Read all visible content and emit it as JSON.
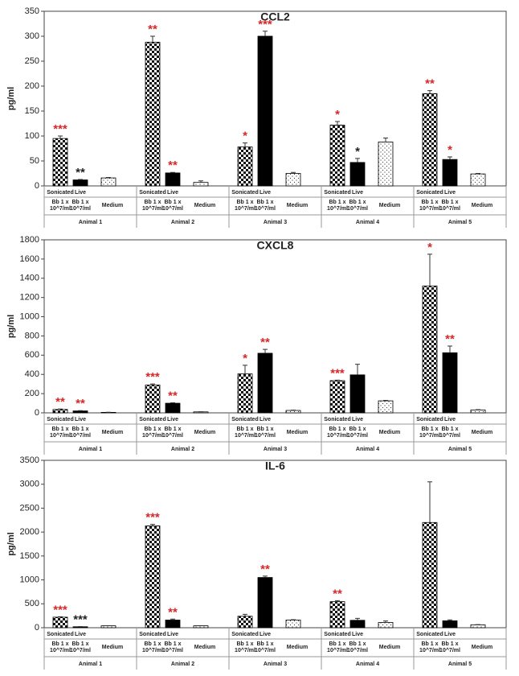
{
  "chart_data": [
    {
      "type": "bar",
      "title": "CCL2",
      "y_label": "pg/ml",
      "categories": [
        "Animal 1",
        "Animal 2",
        "Animal 3",
        "Animal 4",
        "Animal 5"
      ],
      "ylim": [
        0,
        350
      ],
      "yticks": [
        0,
        50,
        100,
        150,
        200,
        250,
        300,
        350
      ],
      "series": [
        {
          "name": "Sonicated",
          "detail": [
            "Bb 1 x",
            "10^7/ml"
          ],
          "pattern": "checker",
          "color": "#000000",
          "values": [
            95,
            288,
            78,
            122,
            185
          ],
          "errors": [
            5,
            12,
            8,
            7,
            6
          ],
          "stars": [
            "***",
            "**",
            "*",
            "*",
            "**"
          ],
          "star_colors": [
            "#d62728",
            "#d62728",
            "#d62728",
            "#d62728",
            "#d62728"
          ]
        },
        {
          "name": "Live",
          "detail": [
            "Bb 1 x",
            "10^7/ml"
          ],
          "pattern": "solid",
          "color": "#000000",
          "values": [
            12,
            26,
            300,
            47,
            53
          ],
          "errors": [
            1,
            1,
            10,
            8,
            5
          ],
          "stars": [
            "**",
            "**",
            "***",
            "*",
            "*"
          ],
          "star_colors": [
            "#222222",
            "#d62728",
            "#d62728",
            "#222222",
            "#d62728"
          ]
        },
        {
          "name": "Medium",
          "pattern": "dots",
          "color": "#000000",
          "values": [
            16,
            7,
            25,
            88,
            24
          ],
          "errors": [
            1,
            3,
            2,
            8,
            1
          ]
        }
      ]
    },
    {
      "type": "bar",
      "title": "CXCL8",
      "y_label": "pg/ml",
      "categories": [
        "Animal 1",
        "Animal 2",
        "Animal 3",
        "Animal 4",
        "Animal 5"
      ],
      "ylim": [
        0,
        1800
      ],
      "yticks": [
        0,
        200,
        400,
        600,
        800,
        1000,
        1200,
        1400,
        1600,
        1800
      ],
      "series": [
        {
          "name": "Sonicated",
          "detail": [
            "Bb 1 x",
            "10^7/ml"
          ],
          "pattern": "checker",
          "color": "#000000",
          "values": [
            35,
            290,
            405,
            335,
            1320
          ],
          "errors": [
            5,
            10,
            90,
            5,
            330
          ],
          "stars": [
            "**",
            "***",
            "*",
            "***",
            "*"
          ],
          "star_colors": [
            "#d62728",
            "#d62728",
            "#d62728",
            "#d62728",
            "#d62728"
          ]
        },
        {
          "name": "Live",
          "detail": [
            "Bb 1 x",
            "10^7/ml"
          ],
          "pattern": "solid",
          "color": "#000000",
          "values": [
            20,
            100,
            620,
            395,
            625
          ],
          "errors": [
            3,
            5,
            40,
            110,
            70
          ],
          "stars": [
            "**",
            "**",
            "**",
            null,
            "**"
          ],
          "star_colors": [
            "#d62728",
            "#d62728",
            "#d62728",
            null,
            "#d62728"
          ]
        },
        {
          "name": "Medium",
          "pattern": "dots",
          "color": "#000000",
          "values": [
            5,
            10,
            25,
            125,
            30
          ],
          "errors": [
            1,
            1,
            3,
            5,
            3
          ]
        }
      ]
    },
    {
      "type": "bar",
      "title": "IL-6",
      "y_label": "pg/ml",
      "categories": [
        "Animal 1",
        "Animal 2",
        "Animal 3",
        "Animal 4",
        "Animal 5"
      ],
      "ylim": [
        0,
        3500
      ],
      "yticks": [
        0,
        500,
        1000,
        1500,
        2000,
        2500,
        3000,
        3500
      ],
      "series": [
        {
          "name": "Sonicated",
          "detail": [
            "Bb 1 x",
            "10^7/ml"
          ],
          "pattern": "checker",
          "color": "#000000",
          "values": [
            220,
            2130,
            240,
            545,
            2200
          ],
          "errors": [
            10,
            30,
            40,
            20,
            850
          ],
          "stars": [
            "***",
            "***",
            null,
            "**",
            null
          ],
          "star_colors": [
            "#d62728",
            "#d62728",
            null,
            "#d62728",
            null
          ]
        },
        {
          "name": "Live",
          "detail": [
            "Bb 1 x",
            "10^7/ml"
          ],
          "pattern": "solid",
          "color": "#000000",
          "values": [
            20,
            160,
            1050,
            155,
            145
          ],
          "errors": [
            3,
            20,
            30,
            40,
            20
          ],
          "stars": [
            "***",
            "**",
            "**",
            null,
            null
          ],
          "star_colors": [
            "#222222",
            "#d62728",
            "#d62728",
            null,
            null
          ]
        },
        {
          "name": "Medium",
          "pattern": "dots",
          "color": "#000000",
          "values": [
            40,
            40,
            160,
            110,
            60
          ],
          "errors": [
            3,
            3,
            8,
            30,
            5
          ]
        }
      ]
    }
  ]
}
